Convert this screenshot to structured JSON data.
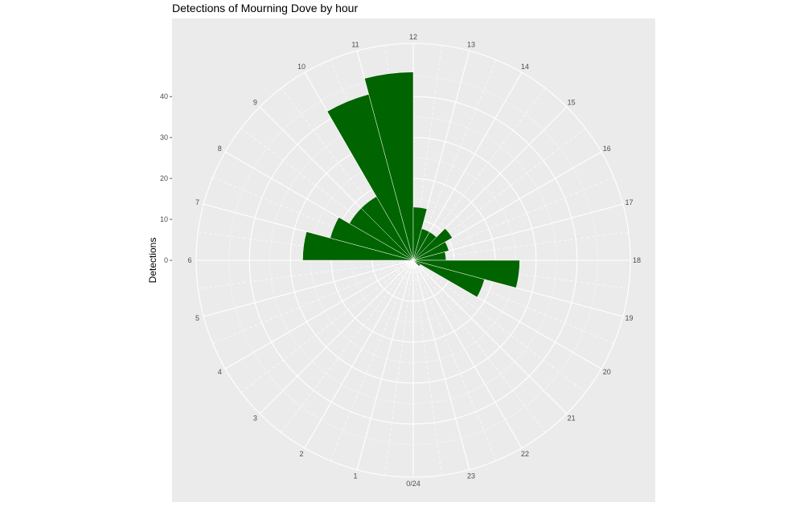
{
  "chart_data": {
    "type": "bar",
    "coord": "polar",
    "title": "Detections of Mourning Dove by hour",
    "xlabel": "",
    "ylabel": "Detections",
    "hour_labels": [
      "0/24",
      "1",
      "2",
      "3",
      "4",
      "5",
      "6",
      "7",
      "8",
      "9",
      "10",
      "11",
      "12",
      "13",
      "14",
      "15",
      "16",
      "17",
      "18",
      "19",
      "20",
      "21",
      "22",
      "23"
    ],
    "y_ticks": [
      "0",
      "10",
      "20",
      "30",
      "40"
    ],
    "y_tick_values": [
      0,
      10,
      20,
      30,
      40
    ],
    "ylim": [
      0,
      53
    ],
    "grid": true,
    "bar_color": "#006400",
    "panel_color": "#ebebeb",
    "categories": [
      "0",
      "1",
      "2",
      "3",
      "4",
      "5",
      "6",
      "7",
      "8",
      "9",
      "10",
      "11",
      "12",
      "13",
      "14",
      "15",
      "16",
      "17",
      "18",
      "19",
      "20",
      "21",
      "22",
      "23"
    ],
    "values": [
      0,
      0,
      0,
      0,
      0,
      0,
      27,
      21,
      18,
      18,
      42,
      46,
      13,
      8,
      8,
      11,
      9,
      8,
      26,
      18,
      2,
      0,
      0,
      0
    ]
  }
}
